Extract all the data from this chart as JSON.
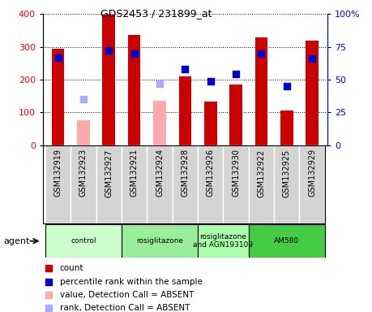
{
  "title": "GDS2453 / 231899_at",
  "samples": [
    "GSM132919",
    "GSM132923",
    "GSM132927",
    "GSM132921",
    "GSM132924",
    "GSM132928",
    "GSM132926",
    "GSM132930",
    "GSM132922",
    "GSM132925",
    "GSM132929"
  ],
  "counts": [
    295,
    null,
    397,
    336,
    null,
    210,
    133,
    185,
    330,
    105,
    318
  ],
  "counts_absent": [
    null,
    75,
    null,
    null,
    135,
    null,
    null,
    null,
    null,
    null,
    null
  ],
  "ranks": [
    67,
    null,
    72,
    70,
    null,
    58,
    49,
    54,
    70,
    45,
    66
  ],
  "ranks_absent": [
    null,
    35,
    null,
    null,
    47,
    null,
    null,
    null,
    null,
    null,
    null
  ],
  "ylim_left": [
    0,
    400
  ],
  "ylim_right": [
    0,
    100
  ],
  "yticks_left": [
    0,
    100,
    200,
    300,
    400
  ],
  "yticks_right": [
    0,
    25,
    50,
    75,
    100
  ],
  "ytick_right_labels": [
    "0",
    "25",
    "50",
    "75",
    "100%"
  ],
  "groups": [
    {
      "label": "control",
      "start": 0,
      "end": 3,
      "color": "#ccffcc"
    },
    {
      "label": "rosiglitazone",
      "start": 3,
      "end": 6,
      "color": "#99ee99"
    },
    {
      "label": "rosiglitazone\nand AGN193109",
      "start": 6,
      "end": 8,
      "color": "#aaffaa"
    },
    {
      "label": "AM580",
      "start": 8,
      "end": 11,
      "color": "#44cc44"
    }
  ],
  "bar_color_present": "#cc0000",
  "bar_color_absent": "#ffaaaa",
  "dot_color_present": "#0000cc",
  "dot_color_absent": "#aaaaff",
  "bar_width": 0.5,
  "dot_size": 40,
  "bg_gray": "#d4d4d4",
  "legend_items": [
    {
      "color": "#cc0000",
      "marker": "s",
      "label": "count"
    },
    {
      "color": "#0000cc",
      "marker": "s",
      "label": "percentile rank within the sample"
    },
    {
      "color": "#ffaaaa",
      "marker": "s",
      "label": "value, Detection Call = ABSENT"
    },
    {
      "color": "#aaaaff",
      "marker": "s",
      "label": "rank, Detection Call = ABSENT"
    }
  ]
}
